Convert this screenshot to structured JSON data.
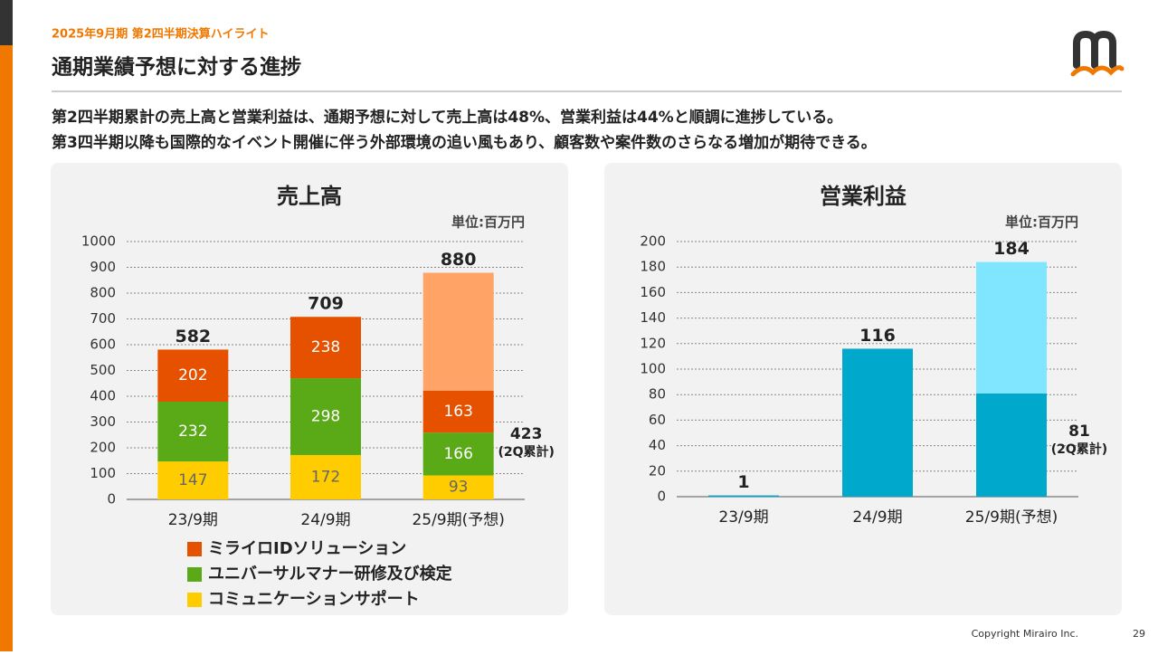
{
  "header": {
    "section": "2025年9月期 第2四半期決算ハイライト",
    "title": "通期業績予想に対する進捗",
    "lead": [
      "第2四半期累計の売上高と営業利益は、通期予想に対して売上高は48%、営業利益は44%と順調に進捗している。",
      "第3四半期以降も国際的なイベント開催に伴う外部環境の追い風もあり、顧客数や案件数のさらなる増加が期待できる。"
    ]
  },
  "footer": {
    "copyright": "Copyright Mirairo Inc.",
    "page": "29"
  },
  "chart_data": [
    {
      "type": "bar",
      "title": "売上高",
      "unit": "単位:百万円",
      "categories": [
        "23/9期",
        "24/9期",
        "25/9期(予想)"
      ],
      "series": [
        {
          "name": "コミュニケーションサポート",
          "color": "#ffcc00",
          "values": [
            147,
            172,
            93
          ]
        },
        {
          "name": "ユニバーサルマナー研修及び検定",
          "color": "#5aaa18",
          "values": [
            232,
            298,
            166
          ]
        },
        {
          "name": "ミライロIDソリューション",
          "color": "#e65100",
          "values": [
            202,
            238,
            163
          ]
        },
        {
          "color": "#ffa366",
          "values": [
            null,
            null,
            457
          ]
        }
      ],
      "totals": [
        582,
        709,
        880
      ],
      "segment_labels": true,
      "annotation": {
        "value": 423,
        "label": "(2Q累計)"
      },
      "ylim": [
        0,
        1000
      ],
      "yticks": [
        0,
        100,
        200,
        300,
        400,
        500,
        600,
        700,
        800,
        900,
        1000
      ],
      "grid": true,
      "legend": "bottom"
    },
    {
      "type": "bar",
      "title": "営業利益",
      "unit": "単位:百万円",
      "categories": [
        "23/9期",
        "24/9期",
        "25/9期(予想)"
      ],
      "series": [
        {
          "color": "#00a8cc",
          "values": [
            1,
            116,
            81
          ]
        },
        {
          "color": "#80e6ff",
          "values": [
            null,
            null,
            103
          ]
        }
      ],
      "totals": [
        1,
        116,
        184
      ],
      "segment_labels": false,
      "annotation": {
        "value": 81,
        "label": "(2Q累計)"
      },
      "ylim": [
        0,
        200
      ],
      "yticks": [
        0,
        20,
        40,
        60,
        80,
        100,
        120,
        140,
        160,
        180,
        200
      ],
      "grid": true
    }
  ]
}
